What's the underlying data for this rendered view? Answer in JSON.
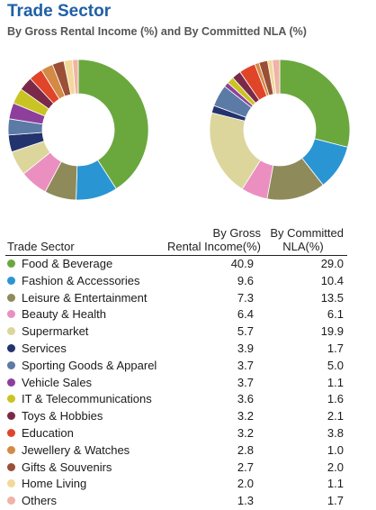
{
  "header": {
    "title": "Trade Sector",
    "subtitle": "By Gross Rental Income (%) and By Committed NLA (%)"
  },
  "table": {
    "col_sector": "Trade Sector",
    "col_gri_line1": "By Gross",
    "col_gri_line2": "Rental Income(%)",
    "col_nla_line1": "By Committed",
    "col_nla_line2": "NLA(%)"
  },
  "chart_data": {
    "type": "pie",
    "style": "donut",
    "categories": [
      "Food & Beverage",
      "Fashion & Accessories",
      "Leisure & Entertainment",
      "Beauty & Health",
      "Supermarket",
      "Services",
      "Sporting Goods & Apparel",
      "Vehicle Sales",
      "IT & Telecommunications",
      "Toys & Hobbies",
      "Education",
      "Jewellery & Watches",
      "Gifts & Souvenirs",
      "Home Living",
      "Others"
    ],
    "colors": [
      "#6aa83e",
      "#2a95d3",
      "#8f8a5a",
      "#eb8fc0",
      "#dcd69c",
      "#23336e",
      "#5b7aa6",
      "#8e3f9b",
      "#c9c423",
      "#7a2a48",
      "#e0452a",
      "#d48a45",
      "#9b4f36",
      "#f2d99a",
      "#f0b3a6"
    ],
    "series": [
      {
        "name": "By Gross Rental Income(%)",
        "values": [
          40.9,
          9.6,
          7.3,
          6.4,
          5.7,
          3.9,
          3.7,
          3.7,
          3.6,
          3.2,
          3.2,
          2.8,
          2.7,
          2.0,
          1.3
        ]
      },
      {
        "name": "By Committed NLA(%)",
        "values": [
          29.0,
          10.4,
          13.5,
          6.1,
          19.9,
          1.7,
          5.0,
          1.1,
          1.6,
          2.1,
          3.8,
          1.0,
          2.0,
          1.1,
          1.7
        ]
      }
    ],
    "legend": "table-below"
  }
}
